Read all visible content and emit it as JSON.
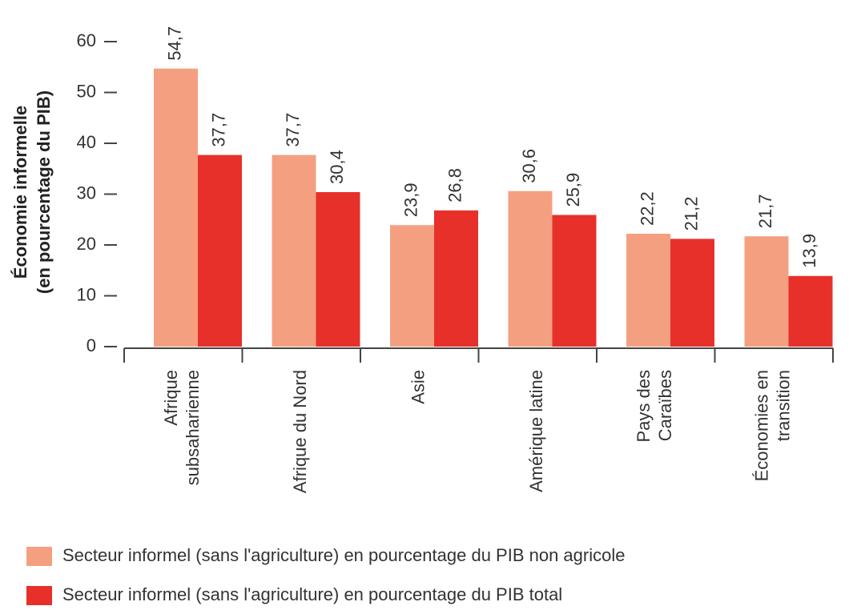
{
  "chart_data": {
    "type": "bar",
    "ylabel": [
      "Économie informelle",
      "(en pourcentage du PIB)"
    ],
    "categories": [
      [
        "Afrique",
        "subsaharienne"
      ],
      [
        "Afrique du Nord"
      ],
      [
        "Asie"
      ],
      [
        "Amérique latine"
      ],
      [
        "Pays des",
        "Caraïbes"
      ],
      [
        "Économies en",
        "transition"
      ]
    ],
    "series": [
      {
        "name": "Secteur informel (sans l'agriculture) en pourcentage du PIB non agricole",
        "color": "#f4a080",
        "values": [
          54.7,
          37.7,
          23.9,
          30.6,
          22.2,
          21.7
        ],
        "value_labels": [
          "54,7",
          "37,7",
          "23,9",
          "30,6",
          "22,2",
          "21,7"
        ]
      },
      {
        "name": "Secteur informel (sans l'agriculture) en pourcentage du PIB total",
        "color": "#e8302a",
        "values": [
          37.7,
          30.4,
          26.8,
          25.9,
          21.2,
          13.9
        ],
        "value_labels": [
          "37,7",
          "30,4",
          "26,8",
          "25,9",
          "21,2",
          "13,9"
        ]
      }
    ],
    "ylim": [
      0,
      60
    ],
    "yticks": [
      0,
      10,
      20,
      30,
      40,
      50,
      60
    ]
  }
}
